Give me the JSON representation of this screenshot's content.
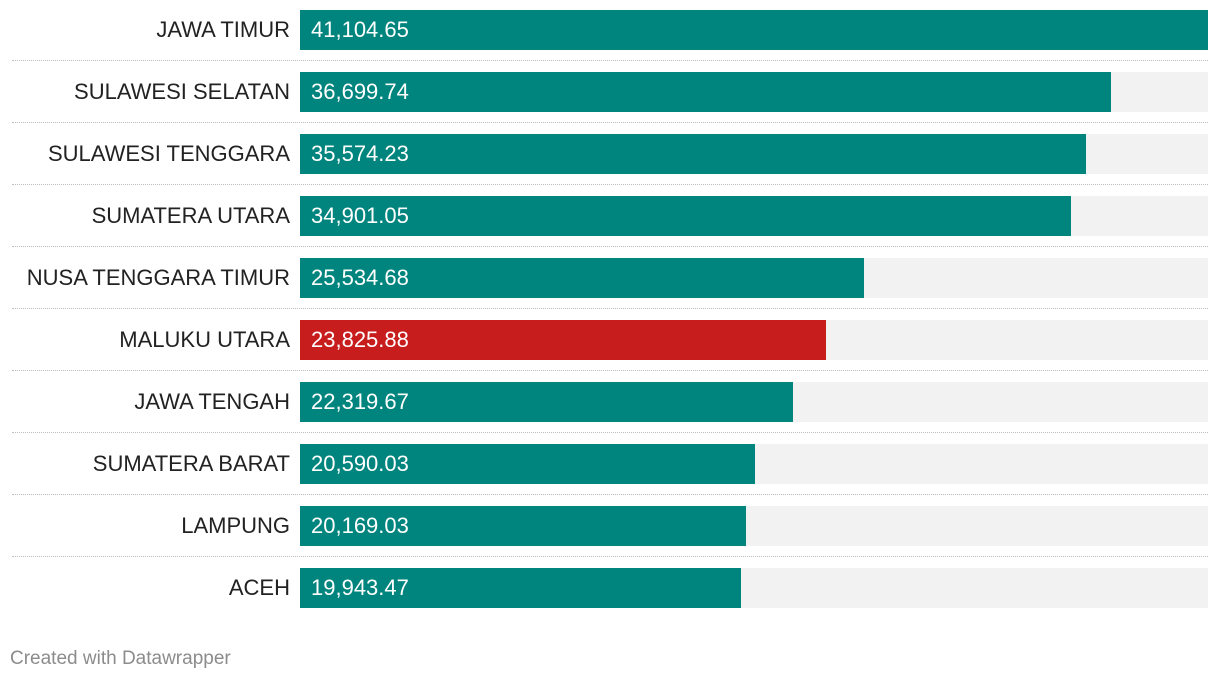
{
  "chart_data": {
    "type": "bar",
    "orientation": "horizontal",
    "title": "",
    "categories": [
      "JAWA TIMUR",
      "SULAWESI SELATAN",
      "SULAWESI TENGGARA",
      "SUMATERA UTARA",
      "NUSA TENGGARA TIMUR",
      "MALUKU UTARA",
      "JAWA TENGAH",
      "SUMATERA BARAT",
      "LAMPUNG",
      "ACEH"
    ],
    "values": [
      41104.65,
      36699.74,
      35574.23,
      34901.05,
      25534.68,
      23825.88,
      22319.67,
      20590.03,
      20169.03,
      19943.47
    ],
    "value_labels": [
      "41,104.65",
      "36,699.74",
      "35,574.23",
      "34,901.05",
      "25,534.68",
      "23,825.88",
      "22,319.67",
      "20,590.03",
      "20,169.03",
      "19,943.47"
    ],
    "highlight_index": 5,
    "colors": {
      "default": "#00847e",
      "highlight": "#c71e1d",
      "track": "#f2f2f2"
    },
    "xlim": [
      0,
      41104.65
    ],
    "grid": false,
    "legend": "none"
  },
  "footer": {
    "credit": "Created with Datawrapper"
  }
}
